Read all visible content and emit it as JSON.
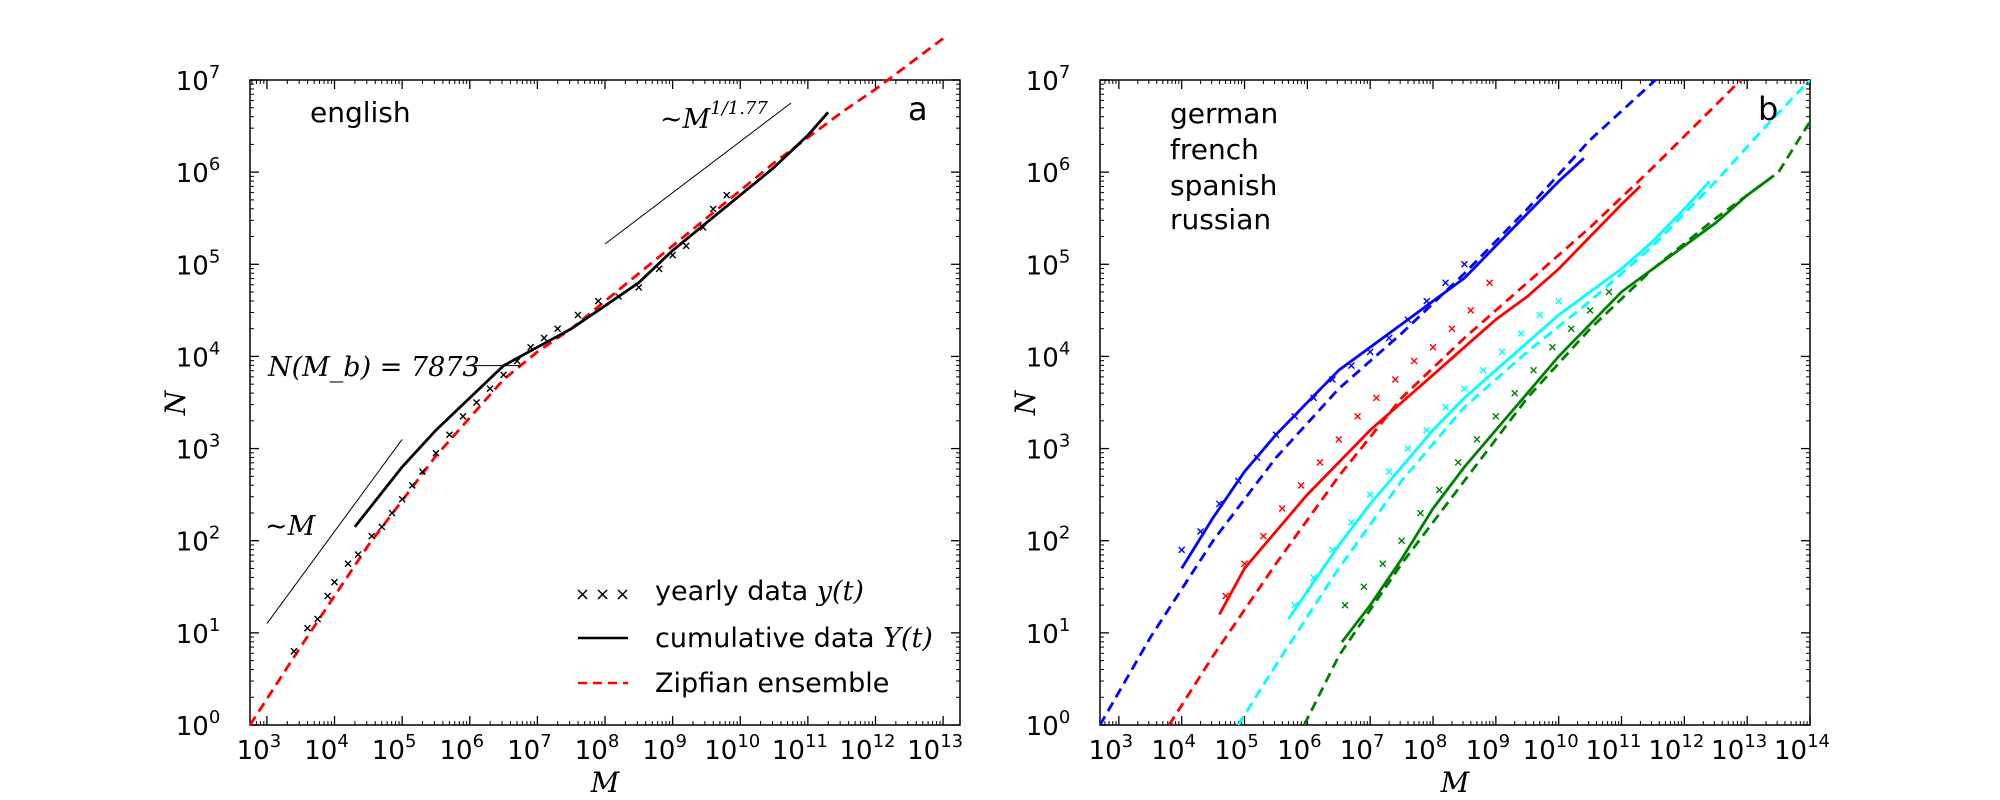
{
  "chart_data": [
    {
      "panel": "a",
      "type": "line",
      "scale": "log-log",
      "panel_label": "a",
      "xlabel": "M",
      "ylabel": "N",
      "xlim_log10": [
        2.75,
        13.25
      ],
      "ylim_log10": [
        0,
        7
      ],
      "x_ticks": [
        {
          "base": "10",
          "exp": "3"
        },
        {
          "base": "10",
          "exp": "4"
        },
        {
          "base": "10",
          "exp": "5"
        },
        {
          "base": "10",
          "exp": "6"
        },
        {
          "base": "10",
          "exp": "7"
        },
        {
          "base": "10",
          "exp": "8"
        },
        {
          "base": "10",
          "exp": "9"
        },
        {
          "base": "10",
          "exp": "10"
        },
        {
          "base": "10",
          "exp": "11"
        },
        {
          "base": "10",
          "exp": "12"
        },
        {
          "base": "10",
          "exp": "13"
        }
      ],
      "y_ticks": [
        {
          "base": "10",
          "exp": "0"
        },
        {
          "base": "10",
          "exp": "1"
        },
        {
          "base": "10",
          "exp": "2"
        },
        {
          "base": "10",
          "exp": "3"
        },
        {
          "base": "10",
          "exp": "4"
        },
        {
          "base": "10",
          "exp": "5"
        },
        {
          "base": "10",
          "exp": "6"
        },
        {
          "base": "10",
          "exp": "7"
        }
      ],
      "language_label": {
        "text": "english",
        "color": "#000000"
      },
      "annotations": {
        "slope_low": "~M",
        "slope_high_prefix": "~M",
        "slope_high_exp": "1/1.77",
        "breakpoint": "N(M_b) = 7873"
      },
      "legend": {
        "position": "lower-right",
        "entries": [
          {
            "key": "yearly",
            "label": "yearly data",
            "math": "y(t)",
            "style": "x-markers",
            "color": "#000000"
          },
          {
            "key": "cumulative",
            "label": "cumulative data",
            "math": "Y(t)",
            "style": "solid",
            "color": "#000000"
          },
          {
            "key": "zipf",
            "label": "Zipfian ensemble",
            "math": "",
            "style": "dashed",
            "color": "#ff0000"
          }
        ]
      },
      "series": [
        {
          "name": "Zipfian ensemble",
          "style": "dashed",
          "color": "#ff0000",
          "log10_x": [
            2.75,
            3.5,
            4.5,
            5.5,
            6.5,
            7.0,
            7.5,
            8.5,
            9.5,
            10.5,
            11.5,
            12.0,
            13.0
          ],
          "log10_y": [
            0.0,
            0.85,
            1.95,
            2.92,
            3.75,
            4.05,
            4.3,
            4.9,
            5.5,
            6.1,
            6.65,
            6.9,
            7.45
          ]
        },
        {
          "name": "cumulative data",
          "style": "solid",
          "color": "#000000",
          "log10_x": [
            4.3,
            5.0,
            5.5,
            6.0,
            6.5,
            7.0,
            7.5,
            8.0,
            8.5,
            9.0,
            9.5,
            10.0,
            10.5,
            11.0,
            11.3
          ],
          "log10_y": [
            2.15,
            2.8,
            3.2,
            3.55,
            3.9,
            4.1,
            4.3,
            4.55,
            4.8,
            5.15,
            5.45,
            5.75,
            6.05,
            6.4,
            6.65
          ]
        },
        {
          "name": "yearly data",
          "style": "markers",
          "color": "#000000",
          "log10_x": [
            3.4,
            3.6,
            3.75,
            3.9,
            4.0,
            4.2,
            4.35,
            4.55,
            4.7,
            4.85,
            5.0,
            5.15,
            5.3,
            5.5,
            5.7,
            5.9,
            6.1,
            6.3,
            6.5,
            6.7,
            6.9,
            7.1,
            7.3,
            7.6,
            7.9,
            8.2,
            8.5,
            8.8,
            9.0,
            9.2,
            9.45,
            9.6,
            9.8
          ],
          "log10_y": [
            0.8,
            1.05,
            1.15,
            1.4,
            1.55,
            1.75,
            1.85,
            2.05,
            2.15,
            2.3,
            2.45,
            2.6,
            2.75,
            2.95,
            3.15,
            3.35,
            3.5,
            3.65,
            3.8,
            3.95,
            4.1,
            4.2,
            4.3,
            4.45,
            4.6,
            4.65,
            4.75,
            4.95,
            5.1,
            5.2,
            5.4,
            5.6,
            5.75
          ]
        },
        {
          "name": "slope ~M guide",
          "style": "thin",
          "color": "#000000",
          "log10_x": [
            3.0,
            5.0
          ],
          "log10_y": [
            1.1,
            3.1
          ]
        },
        {
          "name": "slope ~M^(1/1.77) guide",
          "style": "thin",
          "color": "#000000",
          "log10_x": [
            8.0,
            10.75
          ],
          "log10_y": [
            5.22,
            6.75
          ]
        },
        {
          "name": "breakpoint leader",
          "style": "thin",
          "color": "#000000",
          "log10_x": [
            5.95,
            6.75
          ],
          "log10_y": [
            3.9,
            3.9
          ]
        }
      ]
    },
    {
      "panel": "b",
      "type": "line",
      "scale": "log-log",
      "panel_label": "b",
      "xlabel": "M",
      "ylabel": "N",
      "xlim_log10": [
        2.7,
        14.0
      ],
      "ylim_log10": [
        0,
        7
      ],
      "x_ticks": [
        {
          "base": "10",
          "exp": "3"
        },
        {
          "base": "10",
          "exp": "4"
        },
        {
          "base": "10",
          "exp": "5"
        },
        {
          "base": "10",
          "exp": "6"
        },
        {
          "base": "10",
          "exp": "7"
        },
        {
          "base": "10",
          "exp": "8"
        },
        {
          "base": "10",
          "exp": "9"
        },
        {
          "base": "10",
          "exp": "10"
        },
        {
          "base": "10",
          "exp": "11"
        },
        {
          "base": "10",
          "exp": "12"
        },
        {
          "base": "10",
          "exp": "13"
        },
        {
          "base": "10",
          "exp": "14"
        }
      ],
      "y_ticks": [
        {
          "base": "10",
          "exp": "0"
        },
        {
          "base": "10",
          "exp": "1"
        },
        {
          "base": "10",
          "exp": "2"
        },
        {
          "base": "10",
          "exp": "3"
        },
        {
          "base": "10",
          "exp": "4"
        },
        {
          "base": "10",
          "exp": "5"
        },
        {
          "base": "10",
          "exp": "6"
        },
        {
          "base": "10",
          "exp": "7"
        }
      ],
      "legend": {
        "position": "top-left",
        "entries": [
          {
            "label": "german",
            "color": "#0000ff"
          },
          {
            "label": "french",
            "color": "#ff0000"
          },
          {
            "label": "spanish",
            "color": "#00ffff"
          },
          {
            "label": "russian",
            "color": "#008000"
          }
        ]
      },
      "series": [
        {
          "name": "german",
          "color": "#0000ff",
          "dashed": {
            "log10_x": [
              2.7,
              3.5,
              4.5,
              5.5,
              6.5,
              7.5,
              8.5,
              9.5,
              10.5,
              11.7
            ],
            "log10_y": [
              0.0,
              0.95,
              2.0,
              2.9,
              3.65,
              4.25,
              4.9,
              5.6,
              6.35,
              7.1
            ]
          },
          "solid": {
            "log10_x": [
              4.0,
              4.5,
              5.0,
              5.5,
              6.0,
              6.5,
              7.0,
              7.5,
              8.0,
              8.5,
              9.0,
              9.5,
              10.0,
              10.4
            ],
            "log10_y": [
              1.7,
              2.25,
              2.75,
              3.15,
              3.5,
              3.85,
              4.1,
              4.35,
              4.6,
              4.85,
              5.2,
              5.55,
              5.9,
              6.15
            ]
          },
          "markers": {
            "log10_x": [
              4.0,
              4.3,
              4.6,
              4.9,
              5.2,
              5.5,
              5.8,
              6.1,
              6.4,
              6.7,
              7.0,
              7.3,
              7.6,
              7.9,
              8.2,
              8.5
            ],
            "log10_y": [
              1.9,
              2.1,
              2.4,
              2.65,
              2.9,
              3.15,
              3.35,
              3.55,
              3.75,
              3.9,
              4.05,
              4.2,
              4.4,
              4.6,
              4.8,
              5.0
            ]
          }
        },
        {
          "name": "french",
          "color": "#ff0000",
          "dashed": {
            "log10_x": [
              3.8,
              4.5,
              5.5,
              6.5,
              7.5,
              8.5,
              9.5,
              10.5,
              11.5,
              12.9
            ],
            "log10_y": [
              0.0,
              0.75,
              1.75,
              2.7,
              3.55,
              4.2,
              4.8,
              5.4,
              6.05,
              7.0
            ]
          },
          "solid": {
            "log10_x": [
              4.6,
              5.0,
              5.5,
              6.0,
              6.5,
              7.0,
              7.5,
              8.0,
              8.5,
              9.0,
              9.5,
              10.0,
              10.5,
              11.0,
              11.3
            ],
            "log10_y": [
              1.2,
              1.7,
              2.1,
              2.5,
              2.85,
              3.2,
              3.5,
              3.8,
              4.1,
              4.4,
              4.65,
              4.95,
              5.3,
              5.65,
              5.85
            ]
          },
          "markers": {
            "log10_x": [
              4.7,
              5.0,
              5.3,
              5.6,
              5.9,
              6.2,
              6.5,
              6.8,
              7.1,
              7.4,
              7.7,
              8.0,
              8.3,
              8.6,
              8.9
            ],
            "log10_y": [
              1.4,
              1.75,
              2.05,
              2.35,
              2.6,
              2.85,
              3.1,
              3.35,
              3.55,
              3.75,
              3.95,
              4.1,
              4.3,
              4.5,
              4.8
            ]
          }
        },
        {
          "name": "spanish",
          "color": "#00ffff",
          "dashed": {
            "log10_x": [
              4.9,
              5.5,
              6.5,
              7.5,
              8.5,
              9.5,
              10.5,
              11.5,
              12.5,
              13.3,
              14.0
            ],
            "log10_y": [
              0.0,
              0.65,
              1.7,
              2.65,
              3.45,
              4.05,
              4.6,
              5.2,
              5.9,
              6.5,
              7.0
            ]
          },
          "solid": {
            "log10_x": [
              5.7,
              6.0,
              6.5,
              7.0,
              7.5,
              8.0,
              8.5,
              9.0,
              9.5,
              10.0,
              10.5,
              11.0,
              11.5,
              12.0,
              12.4
            ],
            "log10_y": [
              1.15,
              1.45,
              1.95,
              2.4,
              2.8,
              3.2,
              3.55,
              3.85,
              4.15,
              4.45,
              4.7,
              4.95,
              5.25,
              5.6,
              5.9
            ]
          },
          "markers": {
            "log10_x": [
              5.8,
              6.1,
              6.4,
              6.7,
              7.0,
              7.3,
              7.6,
              7.9,
              8.2,
              8.5,
              8.8,
              9.1,
              9.4,
              9.7,
              10.0
            ],
            "log10_y": [
              1.3,
              1.6,
              1.9,
              2.2,
              2.5,
              2.75,
              3.0,
              3.2,
              3.45,
              3.65,
              3.85,
              4.05,
              4.25,
              4.45,
              4.6
            ]
          }
        },
        {
          "name": "russian",
          "color": "#008000",
          "dashed": {
            "log10_x": [
              5.95,
              6.5,
              7.5,
              8.5,
              9.5,
              10.5,
              11.5,
              12.5,
              13.5,
              14.0
            ],
            "log10_y": [
              0.0,
              0.75,
              1.75,
              2.65,
              3.55,
              4.3,
              4.95,
              5.5,
              6.0,
              6.55
            ]
          },
          "solid": {
            "log10_x": [
              6.55,
              7.0,
              7.5,
              8.0,
              8.5,
              9.0,
              9.5,
              10.0,
              10.5,
              11.0,
              11.5,
              12.0,
              12.5,
              13.0,
              13.4
            ],
            "log10_y": [
              0.9,
              1.3,
              1.8,
              2.35,
              2.8,
              3.2,
              3.6,
              4.0,
              4.35,
              4.7,
              4.95,
              5.2,
              5.45,
              5.75,
              5.95
            ]
          },
          "markers": {
            "log10_x": [
              6.6,
              6.9,
              7.2,
              7.5,
              7.8,
              8.1,
              8.4,
              8.7,
              9.0,
              9.3,
              9.6,
              9.9,
              10.2,
              10.5,
              10.8
            ],
            "log10_y": [
              1.3,
              1.5,
              1.75,
              2.0,
              2.3,
              2.55,
              2.85,
              3.1,
              3.35,
              3.6,
              3.85,
              4.1,
              4.3,
              4.5,
              4.7
            ]
          }
        }
      ]
    }
  ]
}
